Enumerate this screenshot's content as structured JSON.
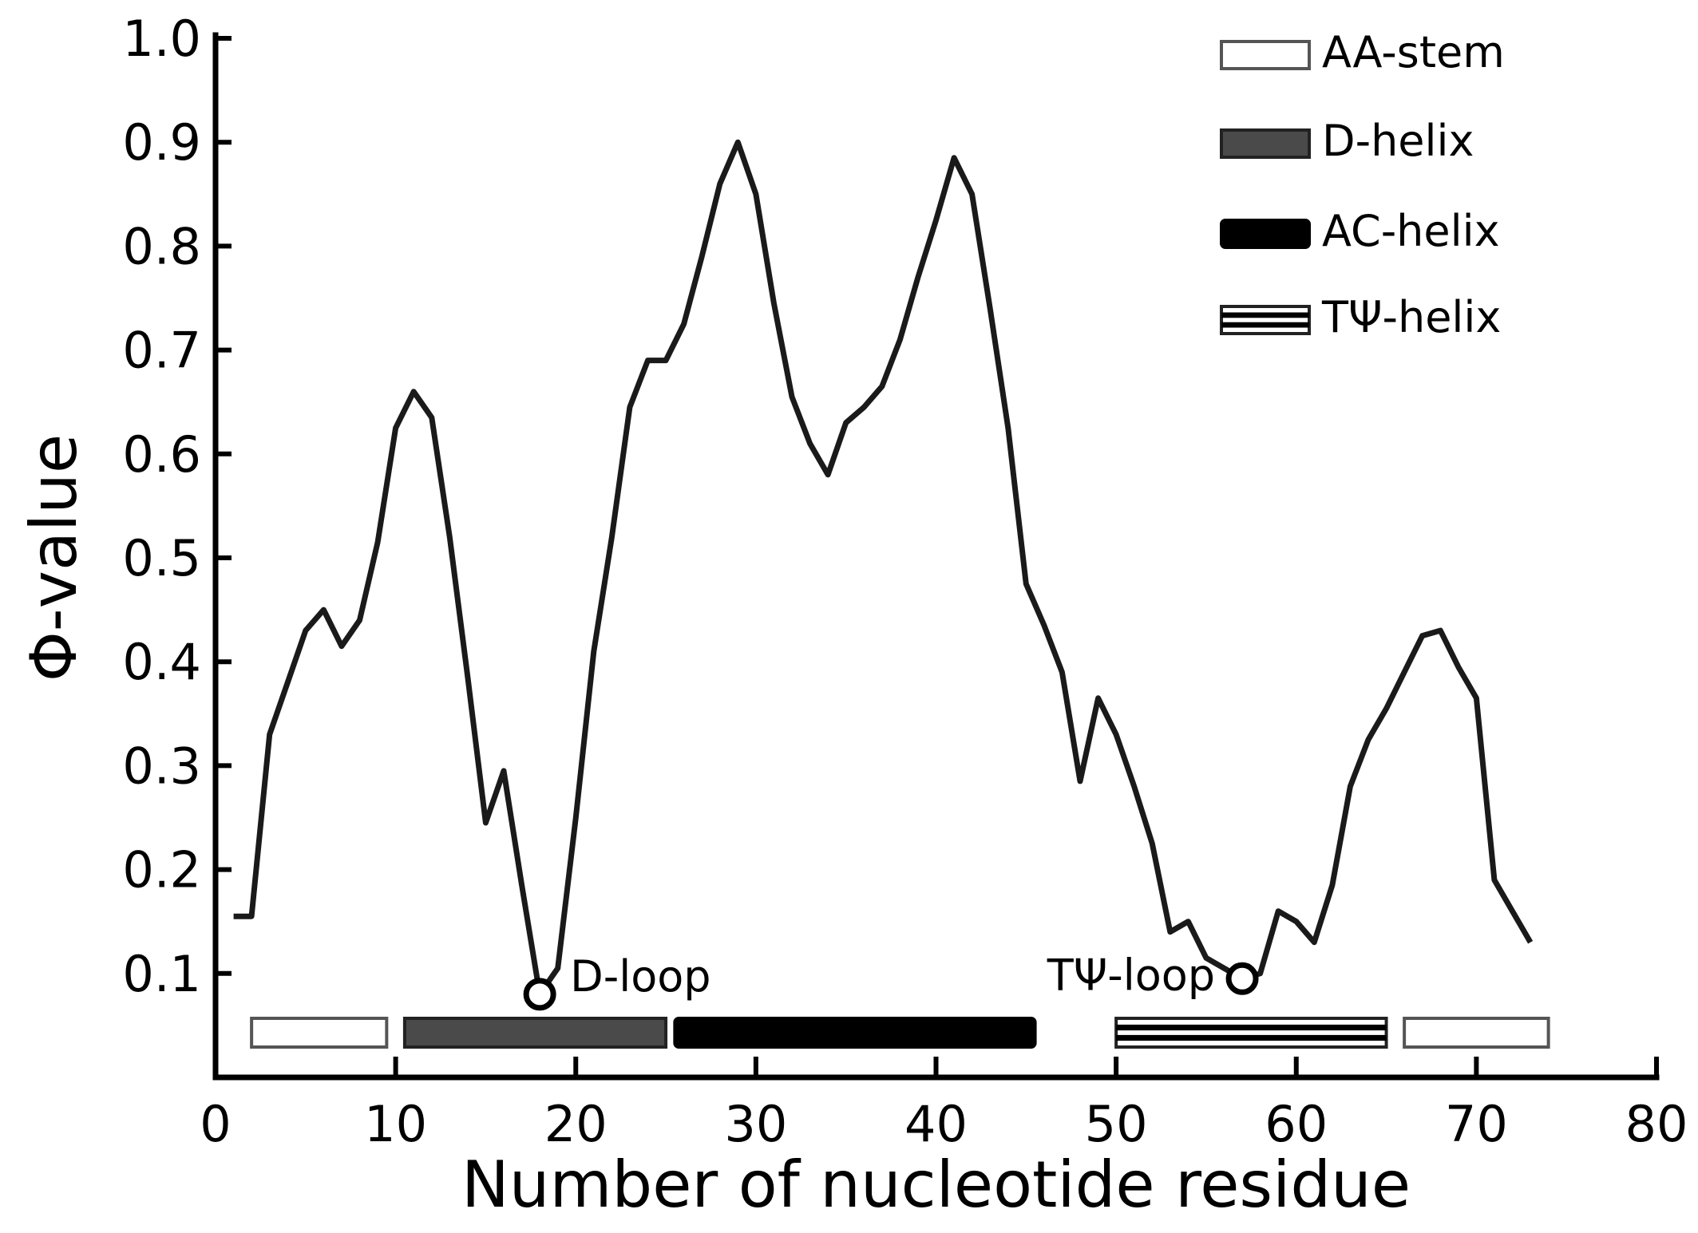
{
  "chart_data": {
    "type": "line",
    "title": "",
    "xlabel": "Number of nucleotide residue",
    "ylabel": "Φ-value",
    "xlim": [
      0,
      80
    ],
    "ylim": [
      0,
      1.0
    ],
    "xticks": [
      0,
      10,
      20,
      30,
      40,
      50,
      60,
      70,
      80
    ],
    "yticks": [
      0.1,
      0.2,
      0.3,
      0.4,
      0.5,
      0.6,
      0.7,
      0.8,
      0.9,
      1.0
    ],
    "xtick_labels": [
      "0",
      "10",
      "20",
      "30",
      "40",
      "50",
      "60",
      "70",
      "80"
    ],
    "ytick_labels": [
      "0.1",
      "0.2",
      "0.3",
      "0.4",
      "0.5",
      "0.6",
      "0.7",
      "0.8",
      "0.9",
      "1.0"
    ],
    "grid": false,
    "legend_position": "top-right",
    "series": [
      {
        "x": [
          1,
          2,
          3,
          4,
          5,
          6,
          7,
          8,
          9,
          10,
          11,
          12,
          13,
          14,
          15,
          16,
          17,
          18,
          19,
          20,
          21,
          22,
          23,
          24,
          25,
          26,
          27,
          28,
          29,
          30,
          31,
          32,
          33,
          34,
          35,
          36,
          37,
          38,
          39,
          40,
          41,
          42,
          43,
          44,
          45,
          46,
          47,
          48,
          49,
          50,
          51,
          52,
          53,
          54,
          55,
          56,
          57,
          58,
          59,
          60,
          61,
          62,
          63,
          64,
          65,
          66,
          67,
          68,
          69,
          70,
          71,
          72,
          73
        ],
        "values": [
          0.155,
          0.155,
          0.33,
          0.38,
          0.43,
          0.45,
          0.415,
          0.44,
          0.515,
          0.625,
          0.66,
          0.635,
          0.52,
          0.385,
          0.245,
          0.295,
          0.185,
          0.08,
          0.105,
          0.25,
          0.41,
          0.52,
          0.645,
          0.69,
          0.69,
          0.725,
          0.79,
          0.86,
          0.9,
          0.85,
          0.745,
          0.655,
          0.61,
          0.58,
          0.63,
          0.645,
          0.665,
          0.71,
          0.77,
          0.825,
          0.885,
          0.85,
          0.74,
          0.625,
          0.475,
          0.435,
          0.39,
          0.285,
          0.365,
          0.33,
          0.28,
          0.225,
          0.14,
          0.15,
          0.115,
          0.105,
          0.095,
          0.1,
          0.16,
          0.15,
          0.13,
          0.185,
          0.28,
          0.325,
          0.355,
          0.39,
          0.425,
          0.43,
          0.395,
          0.365,
          0.19,
          0.16,
          0.13
        ]
      }
    ],
    "annotations": [
      {
        "label": "D-loop",
        "x": 18,
        "y": 0.08
      },
      {
        "label": "TΨ-loop",
        "x": 57,
        "y": 0.095
      }
    ],
    "segments": [
      {
        "name": "AA-stem",
        "style": "open",
        "start": 2,
        "end": 9.5
      },
      {
        "name": "D-helix",
        "style": "dark",
        "start": 10.5,
        "end": 25
      },
      {
        "name": "AC-helix",
        "style": "black",
        "start": 25.5,
        "end": 45.5
      },
      {
        "name": "TΨ-helix",
        "style": "striped",
        "start": 50,
        "end": 65
      },
      {
        "name": "AA-stem",
        "style": "open",
        "start": 66,
        "end": 74
      }
    ],
    "legend": [
      {
        "label": "AA-stem",
        "style": "open"
      },
      {
        "label": "D-helix",
        "style": "dark"
      },
      {
        "label": "AC-helix",
        "style": "black"
      },
      {
        "label": "TΨ-helix",
        "style": "striped"
      }
    ],
    "colors": {
      "line": "#1a1a1a",
      "axis": "#000000",
      "dark_fill": "#4a4a4a",
      "black_fill": "#000000",
      "open_fill": "#ffffff"
    }
  }
}
